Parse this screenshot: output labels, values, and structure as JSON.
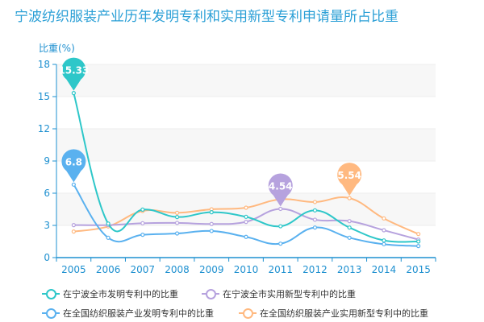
{
  "chart_data": {
    "type": "line",
    "title": "宁波纺织服装产业历年发明专利和实用新型专利申请量所占比重",
    "ylabel": "比重(%)",
    "xlabel": "",
    "ylim": [
      0,
      18
    ],
    "yticks": [
      0,
      3,
      6,
      9,
      12,
      15,
      18
    ],
    "categories": [
      "2005",
      "2006",
      "2007",
      "2008",
      "2009",
      "2010",
      "2011",
      "2012",
      "2013",
      "2014",
      "2015"
    ],
    "grid": true,
    "legend_position": "bottom",
    "series": [
      {
        "name": "在宁波全市发明专利中的比重",
        "color": "#2ec7c9",
        "values": [
          15.33,
          3.17,
          4.47,
          3.78,
          4.23,
          3.8,
          2.92,
          4.4,
          2.8,
          1.6,
          1.5
        ],
        "max_label": "15.33",
        "max_index": 0
      },
      {
        "name": "在宁波全市实用新型专利中的比重",
        "color": "#b6a2de",
        "values": [
          3.03,
          3.03,
          3.2,
          3.23,
          3.13,
          3.33,
          4.54,
          3.53,
          3.4,
          2.55,
          1.68
        ],
        "max_label": "4.54",
        "max_index": 6
      },
      {
        "name": "在全国纺织服装产业发明专利中的比重",
        "color": "#5ab1ef",
        "values": [
          6.8,
          1.85,
          2.13,
          2.25,
          2.48,
          1.93,
          1.3,
          2.8,
          1.85,
          1.25,
          1.08
        ],
        "max_label": "6.8",
        "max_index": 0
      },
      {
        "name": "在全国纺织服装产业实用新型专利中的比重",
        "color": "#ffb980",
        "values": [
          2.43,
          2.9,
          4.35,
          4.17,
          4.5,
          4.65,
          5.43,
          5.18,
          5.54,
          3.65,
          2.2
        ],
        "max_label": "5.54",
        "max_index": 8
      }
    ]
  }
}
